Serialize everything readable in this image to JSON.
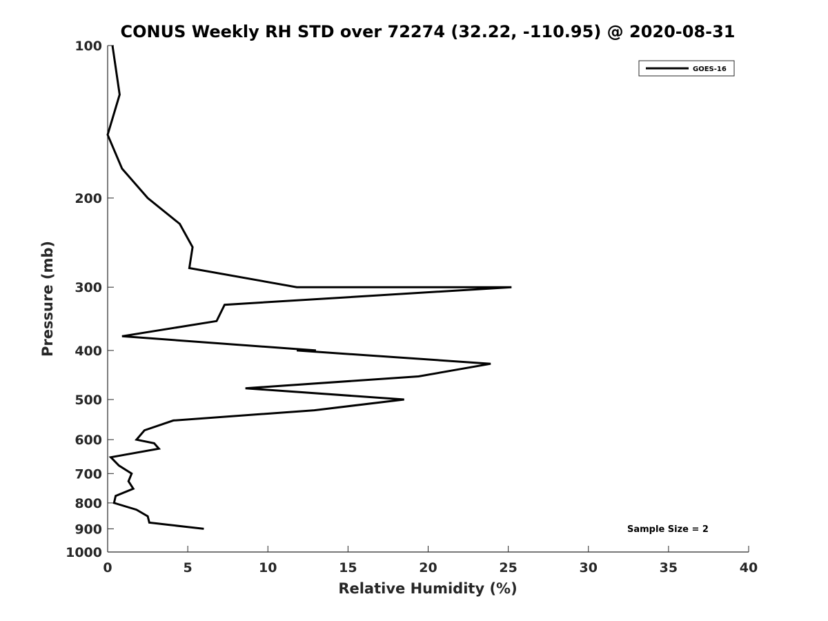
{
  "chart_data": {
    "type": "line",
    "title": "CONUS Weekly RH STD over 72274 (32.22, -110.95) @ 2020-08-31",
    "xlabel": "Relative Humidity (%)",
    "ylabel": "Pressure (mb)",
    "xlim": [
      0,
      40
    ],
    "ylim": [
      100,
      1000
    ],
    "y_scale": "log",
    "y_reversed": true,
    "grid": false,
    "legend_position": "top-right",
    "x_ticks": [
      0,
      5,
      10,
      15,
      20,
      25,
      30,
      35,
      40
    ],
    "y_ticks": [
      100,
      200,
      300,
      400,
      500,
      600,
      700,
      800,
      900,
      1000
    ],
    "annotation": "Sample Size = 2",
    "series": [
      {
        "name": "GOES-16",
        "color": "#000000",
        "points": [
          {
            "x": 0.3,
            "y": 100
          },
          {
            "x": 0.75,
            "y": 125
          },
          {
            "x": 0.0,
            "y": 150
          },
          {
            "x": 0.9,
            "y": 175
          },
          {
            "x": 2.5,
            "y": 200
          },
          {
            "x": 4.5,
            "y": 225
          },
          {
            "x": 5.3,
            "y": 250
          },
          {
            "x": 5.1,
            "y": 275
          },
          {
            "x": 11.8,
            "y": 300
          },
          {
            "x": 23.6,
            "y": 300
          },
          {
            "x": 25.2,
            "y": 300
          },
          {
            "x": 7.3,
            "y": 325
          },
          {
            "x": 6.8,
            "y": 350
          },
          {
            "x": 0.9,
            "y": 375
          },
          {
            "x": 13.0,
            "y": 400
          },
          {
            "x": 11.8,
            "y": 400
          },
          {
            "x": 23.9,
            "y": 425
          },
          {
            "x": 19.4,
            "y": 450
          },
          {
            "x": 8.6,
            "y": 475
          },
          {
            "x": 18.5,
            "y": 500
          },
          {
            "x": 12.9,
            "y": 525
          },
          {
            "x": 4.1,
            "y": 550
          },
          {
            "x": 2.3,
            "y": 575
          },
          {
            "x": 1.8,
            "y": 600
          },
          {
            "x": 2.9,
            "y": 610
          },
          {
            "x": 3.2,
            "y": 625
          },
          {
            "x": 0.2,
            "y": 650
          },
          {
            "x": 0.7,
            "y": 675
          },
          {
            "x": 1.5,
            "y": 700
          },
          {
            "x": 1.3,
            "y": 725
          },
          {
            "x": 1.6,
            "y": 750
          },
          {
            "x": 0.5,
            "y": 775
          },
          {
            "x": 0.4,
            "y": 800
          },
          {
            "x": 1.8,
            "y": 825
          },
          {
            "x": 2.5,
            "y": 850
          },
          {
            "x": 2.6,
            "y": 875
          },
          {
            "x": 6.0,
            "y": 900
          }
        ]
      }
    ]
  }
}
